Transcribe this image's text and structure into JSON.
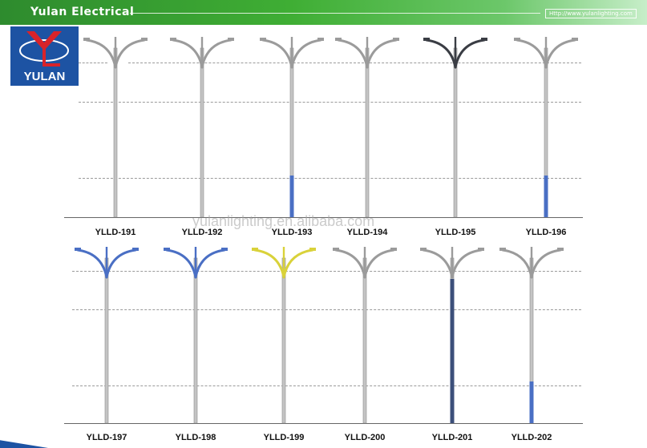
{
  "header": {
    "title": "Yulan Electrical",
    "url": "Http://www.yulanlighting.com"
  },
  "logo": {
    "text": "YULAN"
  },
  "watermark": "yulanlighting.en.alibaba.com",
  "colors": {
    "header_green": "#3fae34",
    "logo_blue": "#1d53a3",
    "pole_blue": "#4a6fc4",
    "pole_yellow": "#d9d23a",
    "pole_dark": "#3a3d44"
  },
  "models": [
    {
      "name": "YLLD-191",
      "arm_color": "#9b9b9b",
      "base_blue": false
    },
    {
      "name": "YLLD-192",
      "arm_color": "#9b9b9b",
      "base_blue": false
    },
    {
      "name": "YLLD-193",
      "arm_color": "#9b9b9b",
      "base_blue": true
    },
    {
      "name": "YLLD-194",
      "arm_color": "#9b9b9b",
      "base_blue": false
    },
    {
      "name": "YLLD-195",
      "arm_color": "#3a3d44",
      "base_blue": false
    },
    {
      "name": "YLLD-196",
      "arm_color": "#9b9b9b",
      "base_blue": true
    },
    {
      "name": "YLLD-197",
      "arm_color": "#4a6fc4",
      "base_blue": false
    },
    {
      "name": "YLLD-198",
      "arm_color": "#4a6fc4",
      "base_blue": false
    },
    {
      "name": "YLLD-199",
      "arm_color": "#d9d23a",
      "base_blue": false
    },
    {
      "name": "YLLD-200",
      "arm_color": "#9b9b9b",
      "base_blue": false
    },
    {
      "name": "YLLD-201",
      "arm_color": "#9b9b9b",
      "base_blue": false
    },
    {
      "name": "YLLD-202",
      "arm_color": "#9b9b9b",
      "base_blue": true
    }
  ]
}
